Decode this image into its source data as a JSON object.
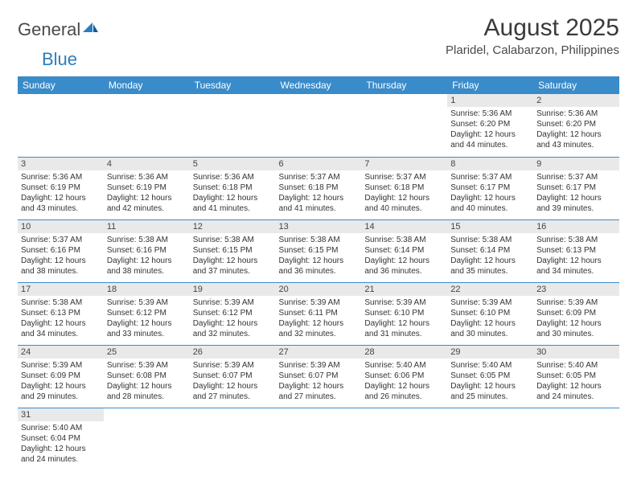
{
  "logo": {
    "text1": "General",
    "text2": "Blue"
  },
  "title": "August 2025",
  "location": "Plaridel, Calabarzon, Philippines",
  "colors": {
    "header_bg": "#3a8bc9",
    "header_text": "#ffffff",
    "daynum_bg": "#e9e9e9",
    "border": "#3a8bc9",
    "logo_blue": "#2b7cc0"
  },
  "weekdays": [
    "Sunday",
    "Monday",
    "Tuesday",
    "Wednesday",
    "Thursday",
    "Friday",
    "Saturday"
  ],
  "first_weekday_index": 5,
  "days": [
    {
      "n": 1,
      "sunrise": "5:36 AM",
      "sunset": "6:20 PM",
      "daylight": "12 hours and 44 minutes."
    },
    {
      "n": 2,
      "sunrise": "5:36 AM",
      "sunset": "6:20 PM",
      "daylight": "12 hours and 43 minutes."
    },
    {
      "n": 3,
      "sunrise": "5:36 AM",
      "sunset": "6:19 PM",
      "daylight": "12 hours and 43 minutes."
    },
    {
      "n": 4,
      "sunrise": "5:36 AM",
      "sunset": "6:19 PM",
      "daylight": "12 hours and 42 minutes."
    },
    {
      "n": 5,
      "sunrise": "5:36 AM",
      "sunset": "6:18 PM",
      "daylight": "12 hours and 41 minutes."
    },
    {
      "n": 6,
      "sunrise": "5:37 AM",
      "sunset": "6:18 PM",
      "daylight": "12 hours and 41 minutes."
    },
    {
      "n": 7,
      "sunrise": "5:37 AM",
      "sunset": "6:18 PM",
      "daylight": "12 hours and 40 minutes."
    },
    {
      "n": 8,
      "sunrise": "5:37 AM",
      "sunset": "6:17 PM",
      "daylight": "12 hours and 40 minutes."
    },
    {
      "n": 9,
      "sunrise": "5:37 AM",
      "sunset": "6:17 PM",
      "daylight": "12 hours and 39 minutes."
    },
    {
      "n": 10,
      "sunrise": "5:37 AM",
      "sunset": "6:16 PM",
      "daylight": "12 hours and 38 minutes."
    },
    {
      "n": 11,
      "sunrise": "5:38 AM",
      "sunset": "6:16 PM",
      "daylight": "12 hours and 38 minutes."
    },
    {
      "n": 12,
      "sunrise": "5:38 AM",
      "sunset": "6:15 PM",
      "daylight": "12 hours and 37 minutes."
    },
    {
      "n": 13,
      "sunrise": "5:38 AM",
      "sunset": "6:15 PM",
      "daylight": "12 hours and 36 minutes."
    },
    {
      "n": 14,
      "sunrise": "5:38 AM",
      "sunset": "6:14 PM",
      "daylight": "12 hours and 36 minutes."
    },
    {
      "n": 15,
      "sunrise": "5:38 AM",
      "sunset": "6:14 PM",
      "daylight": "12 hours and 35 minutes."
    },
    {
      "n": 16,
      "sunrise": "5:38 AM",
      "sunset": "6:13 PM",
      "daylight": "12 hours and 34 minutes."
    },
    {
      "n": 17,
      "sunrise": "5:38 AM",
      "sunset": "6:13 PM",
      "daylight": "12 hours and 34 minutes."
    },
    {
      "n": 18,
      "sunrise": "5:39 AM",
      "sunset": "6:12 PM",
      "daylight": "12 hours and 33 minutes."
    },
    {
      "n": 19,
      "sunrise": "5:39 AM",
      "sunset": "6:12 PM",
      "daylight": "12 hours and 32 minutes."
    },
    {
      "n": 20,
      "sunrise": "5:39 AM",
      "sunset": "6:11 PM",
      "daylight": "12 hours and 32 minutes."
    },
    {
      "n": 21,
      "sunrise": "5:39 AM",
      "sunset": "6:10 PM",
      "daylight": "12 hours and 31 minutes."
    },
    {
      "n": 22,
      "sunrise": "5:39 AM",
      "sunset": "6:10 PM",
      "daylight": "12 hours and 30 minutes."
    },
    {
      "n": 23,
      "sunrise": "5:39 AM",
      "sunset": "6:09 PM",
      "daylight": "12 hours and 30 minutes."
    },
    {
      "n": 24,
      "sunrise": "5:39 AM",
      "sunset": "6:09 PM",
      "daylight": "12 hours and 29 minutes."
    },
    {
      "n": 25,
      "sunrise": "5:39 AM",
      "sunset": "6:08 PM",
      "daylight": "12 hours and 28 minutes."
    },
    {
      "n": 26,
      "sunrise": "5:39 AM",
      "sunset": "6:07 PM",
      "daylight": "12 hours and 27 minutes."
    },
    {
      "n": 27,
      "sunrise": "5:39 AM",
      "sunset": "6:07 PM",
      "daylight": "12 hours and 27 minutes."
    },
    {
      "n": 28,
      "sunrise": "5:40 AM",
      "sunset": "6:06 PM",
      "daylight": "12 hours and 26 minutes."
    },
    {
      "n": 29,
      "sunrise": "5:40 AM",
      "sunset": "6:05 PM",
      "daylight": "12 hours and 25 minutes."
    },
    {
      "n": 30,
      "sunrise": "5:40 AM",
      "sunset": "6:05 PM",
      "daylight": "12 hours and 24 minutes."
    },
    {
      "n": 31,
      "sunrise": "5:40 AM",
      "sunset": "6:04 PM",
      "daylight": "12 hours and 24 minutes."
    }
  ],
  "labels": {
    "sunrise": "Sunrise:",
    "sunset": "Sunset:",
    "daylight": "Daylight:"
  }
}
